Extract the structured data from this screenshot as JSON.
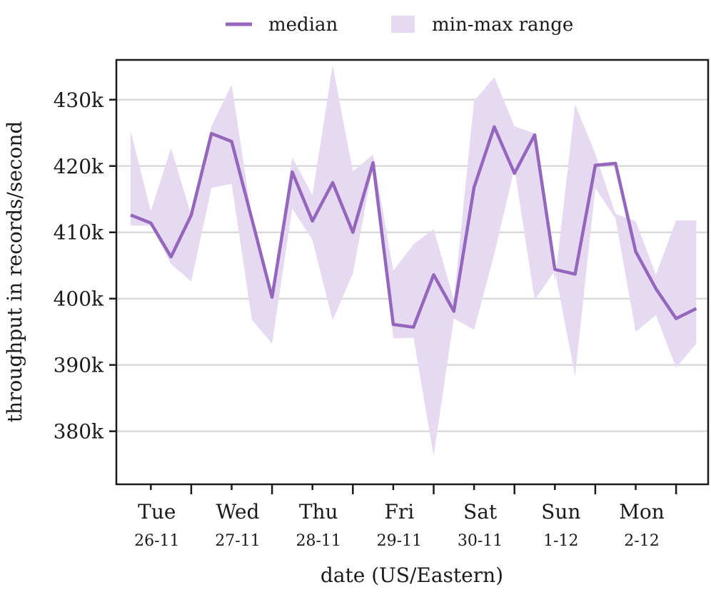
{
  "chart_data": {
    "type": "line",
    "title": "",
    "xlabel": "date (US/Eastern)",
    "ylabel": "throughput in records/second",
    "ylim": [
      372000,
      436000
    ],
    "yticks": [
      380000,
      390000,
      400000,
      410000,
      420000,
      430000
    ],
    "ytick_labels": [
      "380k",
      "390k",
      "400k",
      "410k",
      "420k",
      "430k"
    ],
    "grid": "horizontal",
    "legend": {
      "placement": "top-center",
      "median_label": "median",
      "range_label": "min-max range"
    },
    "x_sample_count": 29,
    "x_major_tick_indices": [
      3,
      7,
      11,
      15,
      19,
      23,
      27
    ],
    "day_labels": [
      {
        "day": "Tue",
        "date": "26-11",
        "center_index": 1.3
      },
      {
        "day": "Wed",
        "date": "27-11",
        "center_index": 5.3
      },
      {
        "day": "Thu",
        "date": "28-11",
        "center_index": 9.3
      },
      {
        "day": "Fri",
        "date": "29-11",
        "center_index": 13.3
      },
      {
        "day": "Sat",
        "date": "30-11",
        "center_index": 17.3
      },
      {
        "day": "Sun",
        "date": "1-12",
        "center_index": 21.3
      },
      {
        "day": "Mon",
        "date": "2-12",
        "center_index": 25.3
      }
    ],
    "series": [
      {
        "name": "median",
        "values": [
          412600,
          411400,
          406300,
          412600,
          424900,
          423700,
          412000,
          400200,
          419100,
          411700,
          417500,
          410000,
          420500,
          396100,
          395700,
          403600,
          398100,
          416800,
          425900,
          418900,
          424700,
          404400,
          403700,
          420100,
          420400,
          407100,
          401500,
          397000,
          398500
        ]
      },
      {
        "name": "min",
        "values": [
          411000,
          411000,
          405200,
          402600,
          416700,
          417300,
          396800,
          393200,
          413600,
          408800,
          396700,
          403800,
          420100,
          394000,
          394100,
          376300,
          397000,
          395300,
          406700,
          419600,
          399800,
          404200,
          388300,
          416700,
          412100,
          395000,
          397500,
          389600,
          393200
        ]
      },
      {
        "name": "max",
        "values": [
          425300,
          413200,
          422700,
          412600,
          426000,
          432300,
          412200,
          400900,
          421300,
          415600,
          435200,
          419200,
          421700,
          404200,
          408200,
          410500,
          399800,
          429800,
          433400,
          426000,
          424900,
          402500,
          429300,
          421900,
          412800,
          411700,
          403600,
          411800,
          411800
        ]
      }
    ],
    "colors": {
      "median": "#9467bd",
      "range": "#e6daf2",
      "grid": "#dadada",
      "axis": "#1a1a1a"
    }
  }
}
